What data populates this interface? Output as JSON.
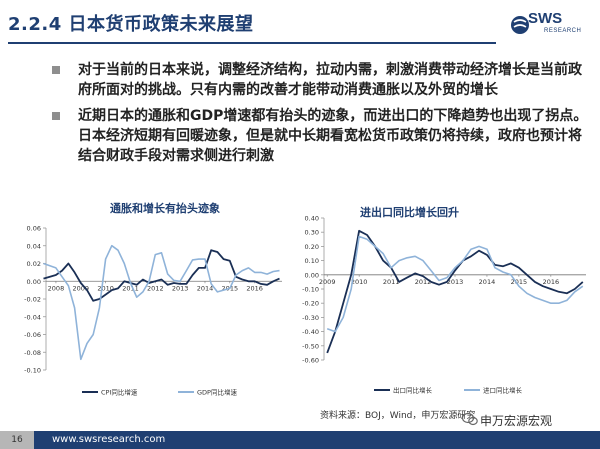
{
  "slide": {
    "title": "2.2.4 日本货币政策未来展望",
    "logo_text": "SWS",
    "logo_sub": "RESEARCH",
    "bullets": [
      "对于当前的日本来说，调整经济结构，拉动内需，刺激消费带动经济增长是当前政府所面对的挑战。只有内需的改善才能带动消费通胀以及外贸的增长",
      "近期日本的通胀和GDP增速都有抬头的迹象，而进出口的下降趋势也出现了拐点。日本经济短期有回暖迹象，但是就中长期看宽松货币政策仍将持续，政府也预计将结合财政手段对需求侧进行刺激"
    ],
    "source": "资料来源：BOJ，Wind，申万宏源研究",
    "page_number": "16",
    "url": "www.swsresearch.com",
    "wechat_label": "申万宏源宏观"
  },
  "colors": {
    "dark_series": "#1a2f55",
    "light_series": "#8fb3d9",
    "brand": "#1f3f72"
  },
  "chart_data": [
    {
      "type": "line",
      "title": "通胀和增长有抬头迹象",
      "x": [
        2007.5,
        2008.0,
        2008.25,
        2008.5,
        2008.75,
        2009.0,
        2009.25,
        2009.5,
        2009.75,
        2010.0,
        2010.25,
        2010.5,
        2010.75,
        2011.0,
        2011.25,
        2011.5,
        2011.75,
        2012.0,
        2012.25,
        2012.5,
        2012.75,
        2013.0,
        2013.25,
        2013.5,
        2013.75,
        2014.0,
        2014.25,
        2014.5,
        2014.75,
        2015.0,
        2015.25,
        2015.5,
        2015.75,
        2016.0,
        2016.25,
        2016.5,
        2016.75,
        2017.0
      ],
      "x_ticks": [
        "2008",
        "2009",
        "2010",
        "2011",
        "2012",
        "2013",
        "2014",
        "2015",
        "2016"
      ],
      "ylim": [
        -0.1,
        0.06
      ],
      "y_ticks": [
        "0.06",
        "0.04",
        "0.02",
        "0.00",
        "-0.02",
        "-0.04",
        "-0.06",
        "-0.08",
        "-0.10"
      ],
      "legend_position": "bottom",
      "series": [
        {
          "name": "CPI同比增速",
          "values": [
            0.003,
            0.007,
            0.012,
            0.02,
            0.01,
            -0.002,
            -0.01,
            -0.022,
            -0.02,
            -0.015,
            -0.01,
            -0.008,
            0.0,
            -0.002,
            -0.004,
            0.002,
            -0.002,
            0.0,
            0.002,
            -0.004,
            -0.002,
            -0.003,
            -0.003,
            0.007,
            0.015,
            0.015,
            0.035,
            0.033,
            0.025,
            0.023,
            0.005,
            0.002,
            0.0,
            0.0,
            -0.003,
            -0.004,
            0.0,
            0.003
          ]
        },
        {
          "name": "GDP同比增速",
          "values": [
            0.02,
            0.015,
            0.005,
            -0.005,
            -0.03,
            -0.088,
            -0.07,
            -0.06,
            -0.03,
            0.025,
            0.04,
            0.035,
            0.02,
            -0.002,
            -0.018,
            -0.012,
            0.0,
            0.03,
            0.032,
            0.008,
            0.001,
            0.0,
            0.012,
            0.024,
            0.025,
            0.025,
            -0.003,
            -0.012,
            -0.01,
            -0.008,
            0.007,
            0.012,
            0.015,
            0.01,
            0.01,
            0.008,
            0.011,
            0.012
          ]
        }
      ]
    },
    {
      "type": "line",
      "title": "进出口同比增长回升",
      "x": [
        2009.0,
        2009.25,
        2009.5,
        2009.75,
        2010.0,
        2010.25,
        2010.5,
        2010.75,
        2011.0,
        2011.25,
        2011.5,
        2011.75,
        2012.0,
        2012.25,
        2012.5,
        2012.75,
        2013.0,
        2013.25,
        2013.5,
        2013.75,
        2014.0,
        2014.25,
        2014.5,
        2014.75,
        2015.0,
        2015.25,
        2015.5,
        2015.75,
        2016.0,
        2016.25,
        2016.5,
        2016.75,
        2017.0
      ],
      "x_ticks": [
        "2009",
        "2010",
        "2011",
        "2012",
        "2013",
        "2014",
        "2015",
        "2016"
      ],
      "ylim": [
        -0.6,
        0.4
      ],
      "y_ticks": [
        "0.40",
        "0.30",
        "0.20",
        "0.10",
        "0.00",
        "-0.10",
        "-0.20",
        "-0.30",
        "-0.40",
        "-0.50",
        "-0.60"
      ],
      "legend_position": "bottom",
      "series": [
        {
          "name": "出口同比增长",
          "values": [
            -0.55,
            -0.4,
            -0.2,
            0.0,
            0.31,
            0.28,
            0.2,
            0.1,
            0.05,
            -0.05,
            -0.02,
            0.01,
            -0.01,
            -0.05,
            -0.07,
            -0.05,
            0.03,
            0.1,
            0.13,
            0.17,
            0.14,
            0.07,
            0.06,
            0.08,
            0.05,
            0.0,
            -0.05,
            -0.08,
            -0.1,
            -0.12,
            -0.13,
            -0.1,
            -0.05
          ]
        },
        {
          "name": "进口同比增长",
          "values": [
            -0.38,
            -0.4,
            -0.3,
            -0.1,
            0.27,
            0.25,
            0.2,
            0.15,
            0.05,
            0.1,
            0.12,
            0.13,
            0.1,
            0.03,
            -0.04,
            -0.02,
            0.05,
            0.1,
            0.18,
            0.2,
            0.18,
            0.05,
            0.02,
            0.0,
            -0.08,
            -0.13,
            -0.16,
            -0.18,
            -0.2,
            -0.2,
            -0.18,
            -0.12,
            -0.08
          ]
        }
      ]
    }
  ]
}
